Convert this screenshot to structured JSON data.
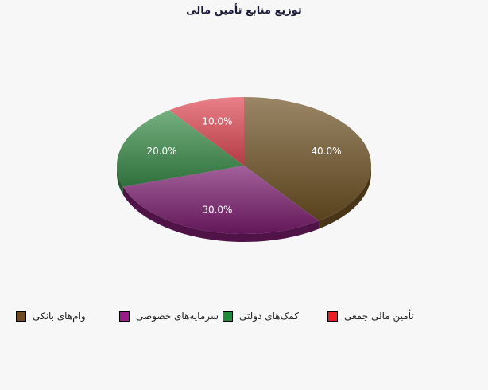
{
  "chart_data": {
    "type": "pie",
    "title": "توزیع منابع تأمین مالی",
    "categories": [
      "وام‌های بانکی",
      "سرمایه‌های خصوصی",
      "کمک‌های دولتی",
      "تأمین مالی جمعی"
    ],
    "values": [
      40,
      30,
      20,
      10
    ],
    "value_labels": [
      "40.0%",
      "30.0%",
      "20.0%",
      "10.0%"
    ],
    "colors": [
      "#6e5224",
      "#7a1d6e",
      "#3a8c4a",
      "#e04a55"
    ],
    "legend_colors": [
      "#6e4a1e",
      "#9a1a8a",
      "#1e8a3a",
      "#ee1c24"
    ],
    "legend": "bottom"
  }
}
